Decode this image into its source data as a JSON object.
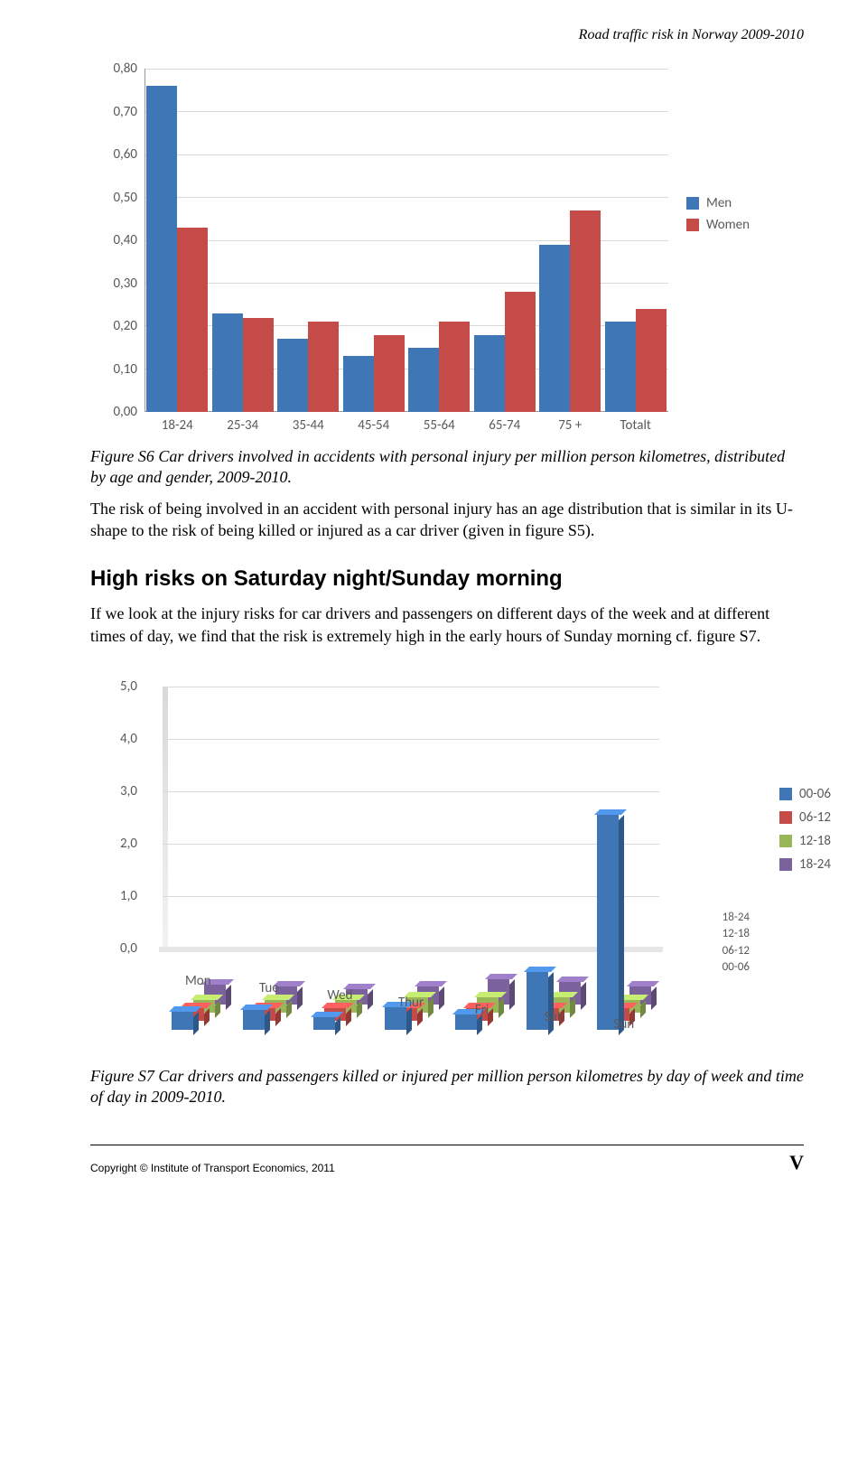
{
  "running_head": "Road traffic risk in Norway 2009-2010",
  "chart1": {
    "type": "bar",
    "categories": [
      "18-24",
      "25-34",
      "35-44",
      "45-54",
      "55-64",
      "65-74",
      "75 +",
      "Totalt"
    ],
    "series": [
      {
        "name": "Men",
        "color": "#3f76b6",
        "values": [
          0.76,
          0.23,
          0.17,
          0.13,
          0.15,
          0.18,
          0.39,
          0.21
        ]
      },
      {
        "name": "Women",
        "color": "#c54b48",
        "values": [
          0.43,
          0.22,
          0.21,
          0.18,
          0.21,
          0.28,
          0.47,
          0.24
        ]
      }
    ],
    "ylim": [
      0.0,
      0.8
    ],
    "ytick_step": 0.1,
    "ytick_labels": [
      "0,00",
      "0,10",
      "0,20",
      "0,30",
      "0,40",
      "0,50",
      "0,60",
      "0,70",
      "0,80"
    ],
    "background_color": "#ffffff",
    "grid_color": "#d9d9d9",
    "axis_color": "#999999",
    "label_fontsize": 15,
    "font_family": "Calibri"
  },
  "figS6_caption": "Figure S6 Car drivers involved in accidents with personal injury per million person kilometres, distributed by age and gender, 2009-2010.",
  "paraA": "The risk of being involved in an accident with personal injury has an age distribution that is similar in its U-shape to the risk of being killed or injured as a car driver (given in figure S5).",
  "heading": "High risks on Saturday night/Sunday morning",
  "paraB": "If we look at the injury risks for car drivers and passengers on different days of the week and at different times of day, we find that the risk is extremely high in the early hours of Sunday morning cf. figure S7.",
  "chart2": {
    "type": "bar3d",
    "days": [
      "Mon",
      "Tue",
      "Wed",
      "Thur",
      "Fri",
      "Sat",
      "Sun"
    ],
    "time_bands": [
      "00-06",
      "06-12",
      "12-18",
      "18-24"
    ],
    "colors": {
      "00-06": "#3f76b6",
      "06-12": "#c54b48",
      "12-18": "#99b758",
      "18-24": "#7b629c"
    },
    "values": {
      "Mon": {
        "00-06": 0.35,
        "06-12": 0.25,
        "12-18": 0.25,
        "18-24": 0.4
      },
      "Tue": {
        "00-06": 0.4,
        "06-12": 0.25,
        "12-18": 0.25,
        "18-24": 0.35
      },
      "Wed": {
        "00-06": 0.25,
        "06-12": 0.25,
        "12-18": 0.25,
        "18-24": 0.3
      },
      "Thur": {
        "00-06": 0.45,
        "06-12": 0.25,
        "12-18": 0.3,
        "18-24": 0.35
      },
      "Fri": {
        "00-06": 0.3,
        "06-12": 0.25,
        "12-18": 0.3,
        "18-24": 0.5
      },
      "Sat": {
        "00-06": 1.15,
        "06-12": 0.25,
        "12-18": 0.3,
        "18-24": 0.45
      },
      "Sun": {
        "00-06": 4.25,
        "06-12": 0.25,
        "12-18": 0.25,
        "18-24": 0.35
      }
    },
    "ylim": [
      0.0,
      5.0
    ],
    "ytick_step": 1.0,
    "ytick_labels": [
      "0,0",
      "1,0",
      "2,0",
      "3,0",
      "4,0",
      "5,0"
    ],
    "depth_axis_labels": [
      "18-24",
      "12-18",
      "06-12",
      "00-06"
    ],
    "grid_color": "#d9d9d9",
    "label_fontsize": 15
  },
  "figS7_caption": "Figure S7 Car drivers and passengers killed or injured per million person kilometres by day of week and time of day in 2009-2010.",
  "copyright": "Copyright © Institute of Transport Economics, 2011",
  "pagenum": "V"
}
